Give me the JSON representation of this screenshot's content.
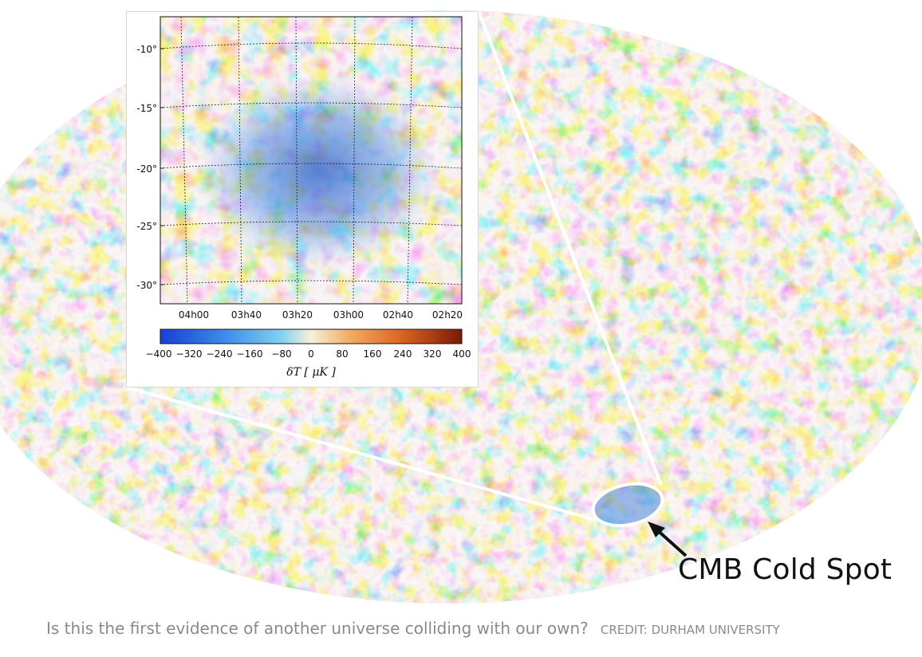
{
  "inset": {
    "y_ticks": [
      "-10°",
      "-15°",
      "-20°",
      "-25°",
      "-30°"
    ],
    "x_ticks": [
      "04h00",
      "03h40",
      "03h20",
      "03h00",
      "02h40",
      "02h20"
    ],
    "colorbar_ticks": [
      "−400",
      "−320",
      "−240",
      "−160",
      "−80",
      "0",
      "80",
      "160",
      "240",
      "320",
      "400"
    ],
    "colorbar_label": "δT [ μK ]"
  },
  "callout": {
    "label": "CMB Cold Spot"
  },
  "caption": {
    "text": "Is this the first evidence of another universe colliding with our own?",
    "credit": "CREDIT: DURHAM UNIVERSITY"
  },
  "colors": {
    "cold": "#2f6fd8",
    "neutral": "#f3ead0",
    "warm": "#e07a2c",
    "hot": "#a8341a"
  }
}
